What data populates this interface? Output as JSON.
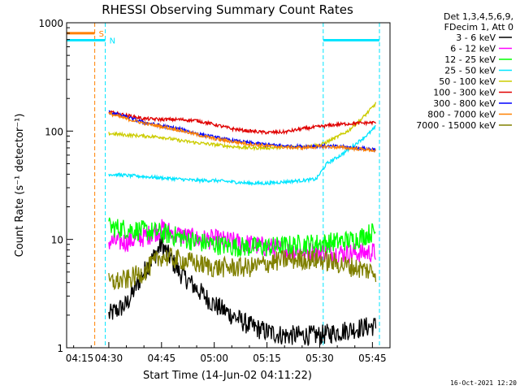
{
  "chart_data": {
    "type": "line",
    "title": "RHESSI Observing Summary Count Rates",
    "xlabel": "Start Time (14-Jun-02 04:11:22)",
    "ylabel": "Count Rate (s⁻¹ detector⁻¹)",
    "y_scale": "log",
    "ylim": [
      1,
      1000
    ],
    "xlim_minutes": [
      -12,
      80
    ],
    "x_ticks": [
      {
        "label": "04:15",
        "minute": -15
      },
      {
        "label": "04:30",
        "minute": 0
      },
      {
        "label": "04:45",
        "minute": 15
      },
      {
        "label": "05:00",
        "minute": 30
      },
      {
        "label": "05:15",
        "minute": 45
      },
      {
        "label": "05:30",
        "minute": 60
      },
      {
        "label": "05:45",
        "minute": 75
      }
    ],
    "y_ticks": [
      {
        "label": "1",
        "value": 1
      },
      {
        "label": "10",
        "value": 10
      },
      {
        "label": "100",
        "value": 100
      },
      {
        "label": "1000",
        "value": 1000
      }
    ],
    "legend": {
      "header": [
        "Det 1,3,4,5,6,9,",
        "FDecim 1, Att 0"
      ],
      "position": "outside-right"
    },
    "flags": [
      {
        "label": "S",
        "color": "#ff8000",
        "segments": [
          [
            -17,
            -4
          ]
        ],
        "level": 800
      },
      {
        "label": "N",
        "color": "#00e5ff",
        "segments": [
          [
            -17,
            -1
          ],
          [
            61,
            77
          ]
        ],
        "level": 690
      }
    ],
    "vlines": [
      {
        "minute": -4,
        "color": "#ff8000"
      },
      {
        "minute": -1,
        "color": "#00e5ff"
      },
      {
        "minute": 61,
        "color": "#00e5ff"
      },
      {
        "minute": 77,
        "color": "#00e5ff"
      }
    ],
    "series": [
      {
        "name": "3 - 6 keV",
        "color": "#000000",
        "x": [
          0,
          5,
          10,
          15,
          20,
          25,
          30,
          35,
          40,
          45,
          50,
          55,
          60,
          65,
          70,
          76
        ],
        "y": [
          2,
          2.5,
          5,
          9,
          5,
          3.5,
          2.5,
          2,
          1.6,
          1.4,
          1.3,
          1.3,
          1.3,
          1.4,
          1.5,
          1.6
        ]
      },
      {
        "name": "6 - 12 keV",
        "color": "#ff00ff",
        "x": [
          0,
          5,
          10,
          15,
          20,
          25,
          30,
          35,
          40,
          45,
          50,
          55,
          60,
          65,
          70,
          76
        ],
        "y": [
          9.5,
          9.5,
          10.5,
          12.5,
          11,
          10,
          10,
          9.5,
          9,
          8.5,
          8,
          7.8,
          7.6,
          7.5,
          7.5,
          7.6
        ]
      },
      {
        "name": "12 - 25 keV",
        "color": "#00ff00",
        "x": [
          0,
          5,
          10,
          15,
          20,
          25,
          30,
          35,
          40,
          45,
          50,
          55,
          60,
          65,
          70,
          76
        ],
        "y": [
          13,
          12.5,
          12,
          11.5,
          10.5,
          9.5,
          9,
          8.6,
          8.5,
          8.5,
          8.7,
          9,
          9.2,
          9.5,
          10,
          12
        ]
      },
      {
        "name": "25 - 50 keV",
        "color": "#00e5ff",
        "x": [
          0,
          5,
          10,
          15,
          20,
          25,
          30,
          35,
          40,
          45,
          50,
          55,
          59,
          62,
          66,
          70,
          74,
          76
        ],
        "y": [
          40,
          39,
          38,
          37,
          36,
          35,
          35,
          34,
          33,
          33,
          34,
          35,
          36,
          50,
          60,
          75,
          95,
          110
        ]
      },
      {
        "name": "50 - 100 keV",
        "color": "#cccc00",
        "x": [
          0,
          5,
          10,
          15,
          20,
          25,
          30,
          35,
          40,
          45,
          50,
          55,
          60,
          64,
          68,
          72,
          76
        ],
        "y": [
          95,
          92,
          90,
          88,
          82,
          78,
          75,
          72,
          70,
          70,
          71,
          72,
          74,
          85,
          100,
          130,
          180
        ]
      },
      {
        "name": "100 - 300 keV",
        "color": "#e00000",
        "x": [
          0,
          5,
          10,
          15,
          20,
          25,
          30,
          35,
          40,
          45,
          50,
          55,
          60,
          65,
          70,
          76
        ],
        "y": [
          150,
          140,
          130,
          128,
          128,
          125,
          115,
          105,
          100,
          97,
          98,
          105,
          110,
          115,
          118,
          120
        ]
      },
      {
        "name": "300 - 800 keV",
        "color": "#0000ff",
        "x": [
          0,
          5,
          10,
          15,
          20,
          25,
          30,
          35,
          40,
          45,
          50,
          55,
          60,
          65,
          70,
          76
        ],
        "y": [
          150,
          135,
          120,
          112,
          105,
          95,
          88,
          82,
          78,
          75,
          73,
          72,
          73,
          72,
          70,
          68
        ]
      },
      {
        "name": "800 - 7000 keV",
        "color": "#ff8000",
        "x": [
          0,
          5,
          10,
          15,
          20,
          25,
          30,
          35,
          40,
          45,
          50,
          55,
          60,
          65,
          70,
          76
        ],
        "y": [
          145,
          130,
          118,
          110,
          102,
          93,
          85,
          80,
          76,
          73,
          71,
          70,
          72,
          71,
          69,
          66
        ]
      },
      {
        "name": "7000 - 15000 keV",
        "color": "#808000",
        "x": [
          0,
          5,
          10,
          15,
          20,
          25,
          30,
          35,
          40,
          45,
          50,
          55,
          60,
          65,
          70,
          76
        ],
        "y": [
          4,
          4.2,
          5,
          7,
          6.5,
          6,
          5.5,
          5.5,
          5.5,
          6,
          6.5,
          6.5,
          6.5,
          6,
          5.5,
          5
        ]
      }
    ]
  },
  "footer": {
    "timestamp": "16-Oct-2021 12:20"
  }
}
